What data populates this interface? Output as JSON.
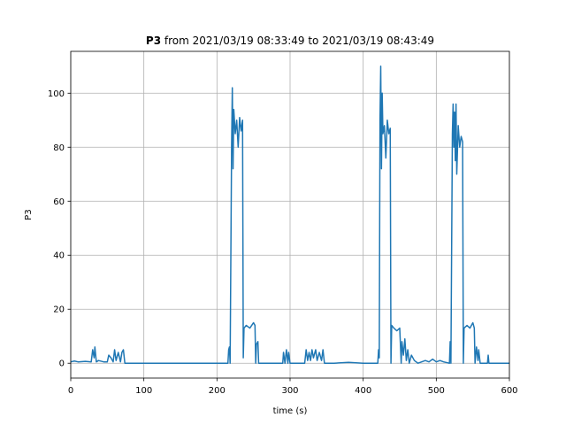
{
  "chart_data": {
    "type": "line",
    "title": {
      "bold": "P3",
      "rest": "from 2021/03/19 08:33:49 to 2021/03/19 08:43:49"
    },
    "xlabel": "time (s)",
    "ylabel": "P3",
    "x": [
      0,
      5,
      10,
      20,
      28,
      30,
      32,
      33,
      35,
      38,
      45,
      50,
      52,
      55,
      58,
      60,
      62,
      65,
      68,
      70,
      72,
      74,
      100,
      150,
      200,
      215,
      216,
      217,
      218,
      220,
      221,
      222,
      223,
      225,
      227,
      229,
      231,
      233,
      235,
      236,
      237,
      240,
      245,
      250,
      252,
      253,
      254,
      256,
      257,
      260,
      290,
      291,
      293,
      295,
      297,
      298,
      300,
      320,
      322,
      324,
      326,
      328,
      330,
      332,
      335,
      337,
      340,
      343,
      345,
      347,
      360,
      380,
      400,
      420,
      421,
      422,
      423,
      424,
      425,
      426,
      427,
      429,
      431,
      433,
      435,
      437,
      438,
      439,
      442,
      446,
      450,
      452,
      453,
      455,
      457,
      459,
      461,
      463,
      466,
      470,
      475,
      480,
      485,
      490,
      495,
      500,
      505,
      510,
      518,
      519,
      520,
      522,
      523,
      524,
      525,
      526,
      527,
      528,
      530,
      532,
      534,
      536,
      537,
      538,
      542,
      546,
      550,
      552,
      553,
      555,
      557,
      558,
      560,
      570,
      571,
      572,
      600
    ],
    "values": [
      0.5,
      0.8,
      0.5,
      0.7,
      0.5,
      5,
      2,
      6,
      0.5,
      1,
      0.5,
      0.5,
      3,
      2,
      0.5,
      5,
      1,
      4,
      0.5,
      4,
      5,
      0,
      0,
      0,
      0,
      0,
      5,
      6,
      0,
      80,
      102,
      72,
      94,
      85,
      90,
      80,
      91,
      86,
      90,
      2,
      13,
      14,
      13,
      15,
      14,
      0,
      7,
      8,
      0,
      0,
      0,
      4,
      0,
      5,
      0,
      4,
      0,
      0,
      5,
      1,
      4,
      1,
      5,
      2,
      5,
      1,
      4,
      1,
      5,
      0,
      0,
      0.3,
      0,
      0,
      5,
      2,
      90,
      110,
      72,
      100,
      85,
      88,
      76,
      90,
      85,
      87,
      0,
      14,
      13,
      12,
      13,
      0,
      8,
      3,
      9,
      1,
      5,
      0,
      3,
      1,
      0,
      0.5,
      1,
      0.5,
      1.5,
      0.5,
      1,
      0.5,
      0,
      8,
      0,
      85,
      96,
      80,
      93,
      75,
      96,
      70,
      88,
      80,
      84,
      82,
      0,
      13,
      14,
      13,
      15,
      13,
      0,
      6,
      1,
      5,
      0,
      0,
      3,
      0,
      0
    ],
    "color": "#1f77b4",
    "xlim": [
      0,
      600
    ],
    "xticks": [
      0,
      100,
      200,
      300,
      400,
      500,
      600
    ],
    "ylim": [
      -5.5,
      115.5
    ],
    "yticks": [
      0,
      20,
      40,
      60,
      80,
      100
    ],
    "grid": true
  }
}
